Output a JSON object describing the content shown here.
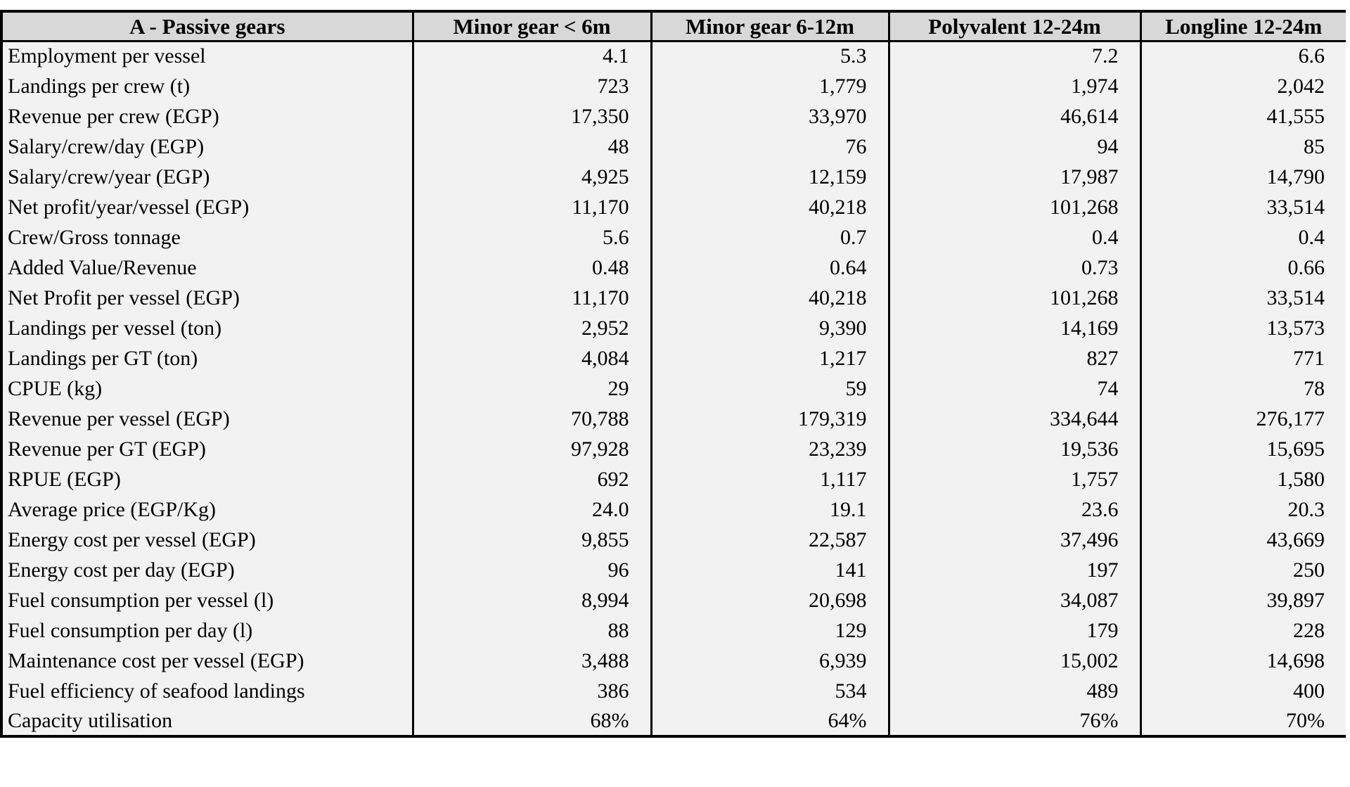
{
  "chart_data": {
    "type": "table",
    "title": "A - Passive gears",
    "columns": [
      "Minor gear < 6m",
      "Minor gear 6-12m",
      "Polyvalent 12-24m",
      "Longline 12-24m"
    ],
    "rows": [
      [
        "Employment per vessel",
        "4.1",
        "5.3",
        "7.2",
        "6.6"
      ],
      [
        "Landings per crew (t)",
        "723",
        "1,779",
        "1,974",
        "2,042"
      ],
      [
        "Revenue per crew  (EGP)",
        "17,350",
        "33,970",
        "46,614",
        "41,555"
      ],
      [
        "Salary/crew/day (EGP)",
        "48",
        "76",
        "94",
        "85"
      ],
      [
        "Salary/crew/year (EGP)",
        "4,925",
        "12,159",
        "17,987",
        "14,790"
      ],
      [
        "Net profit/year/vessel (EGP)",
        "11,170",
        "40,218",
        "101,268",
        "33,514"
      ],
      [
        "Crew/Gross tonnage",
        "5.6",
        "0.7",
        "0.4",
        "0.4"
      ],
      [
        "Added Value/Revenue",
        "0.48",
        "0.64",
        "0.73",
        "0.66"
      ],
      [
        "Net Profit per vessel (EGP)",
        "11,170",
        "40,218",
        "101,268",
        "33,514"
      ],
      [
        "Landings per vessel (ton)",
        "2,952",
        "9,390",
        "14,169",
        "13,573"
      ],
      [
        "Landings per GT (ton)",
        "4,084",
        "1,217",
        "827",
        "771"
      ],
      [
        "CPUE (kg)",
        "29",
        "59",
        "74",
        "78"
      ],
      [
        "Revenue per vessel (EGP)",
        "70,788",
        "179,319",
        "334,644",
        "276,177"
      ],
      [
        "Revenue per GT (EGP)",
        "97,928",
        "23,239",
        "19,536",
        "15,695"
      ],
      [
        "RPUE (EGP)",
        "692",
        "1,117",
        "1,757",
        "1,580"
      ],
      [
        "Average price (EGP/Kg)",
        "24.0",
        "19.1",
        "23.6",
        "20.3"
      ],
      [
        "Energy cost per vessel (EGP)",
        "9,855",
        "22,587",
        "37,496",
        "43,669"
      ],
      [
        "Energy cost per day (EGP)",
        "96",
        "141",
        "197",
        "250"
      ],
      [
        "Fuel consumption per vessel (l)",
        "8,994",
        "20,698",
        "34,087",
        "39,897"
      ],
      [
        "Fuel consumption per day (l)",
        "88",
        "129",
        "179",
        "228"
      ],
      [
        "Maintenance cost per vessel (EGP)",
        "3,488",
        "6,939",
        "15,002",
        "14,698"
      ],
      [
        "Fuel efficiency of seafood landings",
        "386",
        "534",
        "489",
        "400"
      ],
      [
        "Capacity utilisation",
        "68%",
        "64%",
        "76%",
        "70%"
      ]
    ],
    "layout": {
      "grid": "vertical column rules only, no row rules",
      "legend": "none",
      "header_align": "center",
      "value_align": "right"
    },
    "colors": {
      "header_bg": "#d8d8d8",
      "body_bg": "#f2f2f2",
      "border": "#000000",
      "text": "#000000",
      "page_bg": "#ffffff"
    }
  }
}
